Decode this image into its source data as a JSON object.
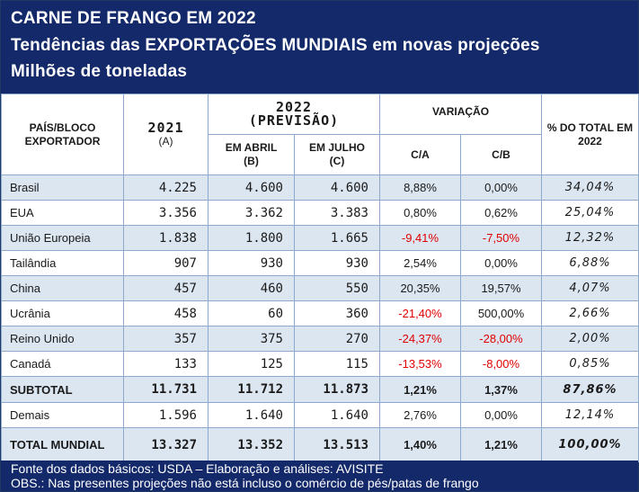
{
  "header": {
    "title1": "CARNE DE FRANGO EM 2022",
    "title2": "Tendências das EXPORTAÇÕES MUNDIAIS em novas projeções",
    "title3": "Milhões de toneladas"
  },
  "columns": {
    "exporter": "PAÍS/BLOCO EXPORTADOR",
    "y2021": "2021",
    "y2021_sub": "(A)",
    "y2022": "2022",
    "y2022_sub": "(PREVISÃO)",
    "april": "EM ABRIL",
    "april_sub": "(B)",
    "july": "EM JULHO",
    "july_sub": "(C)",
    "variation": "VARIAÇÃO",
    "ca": "C/A",
    "cb": "C/B",
    "share": "% DO TOTAL EM 2022"
  },
  "rows": [
    {
      "name": "Brasil",
      "a": "4.225",
      "b": "4.600",
      "c": "4.600",
      "ca": "8,88%",
      "cb": "0,00%",
      "share": "34,04%"
    },
    {
      "name": "EUA",
      "a": "3.356",
      "b": "3.362",
      "c": "3.383",
      "ca": "0,80%",
      "cb": "0,62%",
      "share": "25,04%"
    },
    {
      "name": "União Europeia",
      "a": "1.838",
      "b": "1.800",
      "c": "1.665",
      "ca": "-9,41%",
      "cb": "-7,50%",
      "share": "12,32%"
    },
    {
      "name": "Tailândia",
      "a": "907",
      "b": "930",
      "c": "930",
      "ca": "2,54%",
      "cb": "0,00%",
      "share": "6,88%"
    },
    {
      "name": "China",
      "a": "457",
      "b": "460",
      "c": "550",
      "ca": "20,35%",
      "cb": "19,57%",
      "share": "4,07%"
    },
    {
      "name": "Ucrânia",
      "a": "458",
      "b": "60",
      "c": "360",
      "ca": "-21,40%",
      "cb": "500,00%",
      "share": "2,66%"
    },
    {
      "name": "Reino Unido",
      "a": "357",
      "b": "375",
      "c": "270",
      "ca": "-24,37%",
      "cb": "-28,00%",
      "share": "2,00%"
    },
    {
      "name": "Canadá",
      "a": "133",
      "b": "125",
      "c": "115",
      "ca": "-13,53%",
      "cb": "-8,00%",
      "share": "0,85%"
    }
  ],
  "subtotal": {
    "name": "SUBTOTAL",
    "a": "11.731",
    "b": "11.712",
    "c": "11.873",
    "ca": "1,21%",
    "cb": "1,37%",
    "share": "87,86%"
  },
  "others": {
    "name": "Demais",
    "a": "1.596",
    "b": "1.640",
    "c": "1.640",
    "ca": "2,76%",
    "cb": "0,00%",
    "share": "12,14%"
  },
  "total": {
    "name": "TOTAL MUNDIAL",
    "a": "13.327",
    "b": "13.352",
    "c": "13.513",
    "ca": "1,40%",
    "cb": "1,21%",
    "share": "100,00%"
  },
  "footer": {
    "source": "Fonte dos dados básicos: USDA – Elaboração e análises: AVISITE",
    "note": "OBS.: Nas presentes projeções não está incluso o comércio de pés/patas de frango"
  },
  "colors": {
    "header_bg": "#13296a",
    "band": "#dce6f1",
    "negative": "#e00000"
  }
}
